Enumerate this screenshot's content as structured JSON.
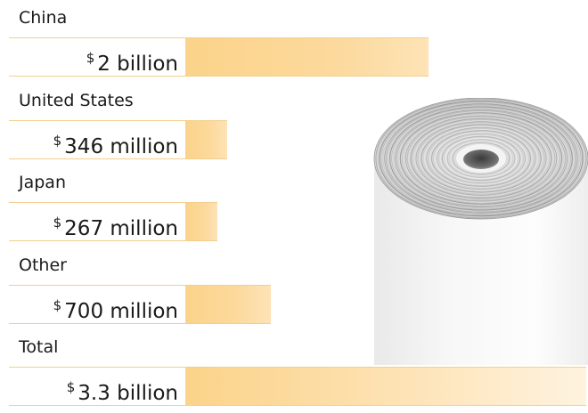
{
  "chart_data": {
    "type": "bar",
    "categories": [
      "China",
      "United States",
      "Japan",
      "Other",
      "Total"
    ],
    "value_labels": [
      {
        "currency": "$",
        "text": "2 billion"
      },
      {
        "currency": "$",
        "text": "346 million"
      },
      {
        "currency": "$",
        "text": "267 million"
      },
      {
        "currency": "$",
        "text": "700 million"
      },
      {
        "currency": "$",
        "text": "3.3 billion"
      }
    ],
    "values": [
      2000,
      346,
      267,
      700,
      3300
    ],
    "value_unit": "million USD",
    "title": "",
    "xlabel": "",
    "ylabel": "",
    "legend": "none",
    "grid": false
  },
  "colors": {
    "bar": "#fbd38a",
    "bar_edge": "#f2cf8f",
    "text": "#1a1a1a"
  },
  "illustration": "paper-roll-image"
}
